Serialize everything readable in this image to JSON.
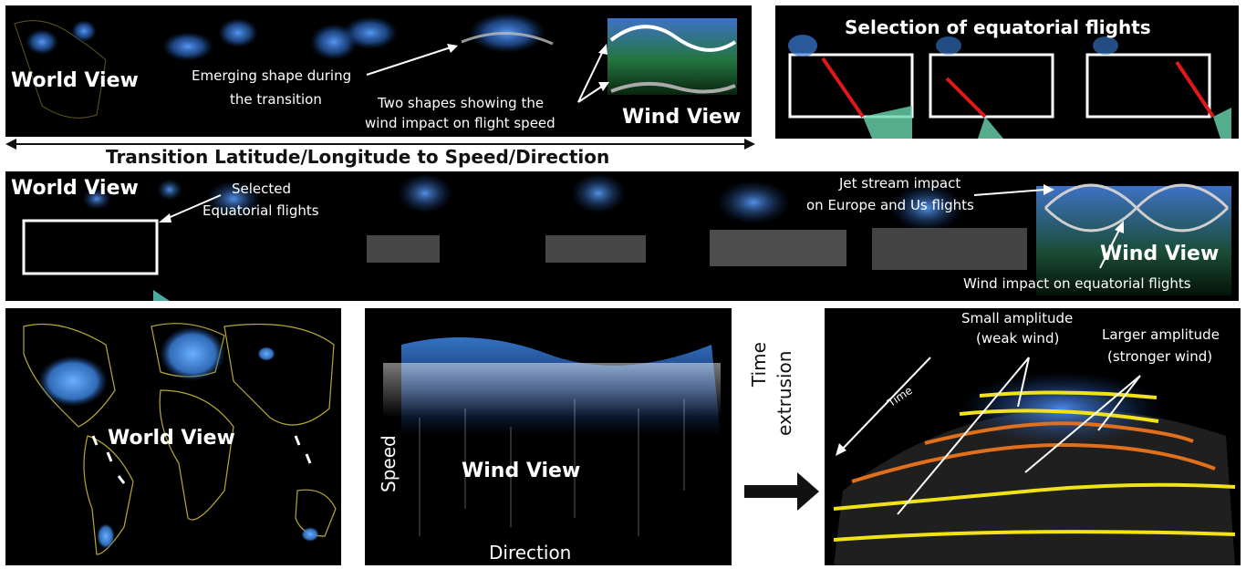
{
  "top_strip": {
    "world_view": "World View",
    "emerging_line1": "Emerging shape during",
    "emerging_line2": "the transition",
    "two_shapes_line1": "Two shapes showing the",
    "two_shapes_line2": "wind impact on flight speed",
    "wind_view": "Wind View"
  },
  "selection_panel": {
    "title": "Selection of equatorial flights"
  },
  "transition_caption": "Transition Latitude/Longitude to Speed/Direction",
  "middle_strip": {
    "world_view": "World View",
    "selected_line1": "Selected",
    "selected_line2": "Equatorial flights",
    "jet_line1": "Jet stream impact",
    "jet_line2": "on Europe and Us flights",
    "wind_view": "Wind View",
    "wind_impact": "Wind impact on equatorial flights"
  },
  "bottom_left": {
    "world_view": "World View"
  },
  "bottom_middle": {
    "speed": "Speed",
    "wind_view": "Wind View",
    "direction": "Direction"
  },
  "time_extrusion": {
    "time": "Time",
    "extrusion": "extrusion"
  },
  "bottom_right": {
    "small_line1": "Small amplitude",
    "small_line2": "(weak wind)",
    "larger_line1": "Larger amplitude",
    "larger_line2": "(stronger wind)",
    "time_axis": "Time"
  },
  "colors": {
    "wind_blue": "#3a7fd8",
    "map_yellow": "#b8a832",
    "curve_yellow": "#f2e21a",
    "curve_orange": "#e0701c",
    "highlight_red": "#e01818"
  }
}
